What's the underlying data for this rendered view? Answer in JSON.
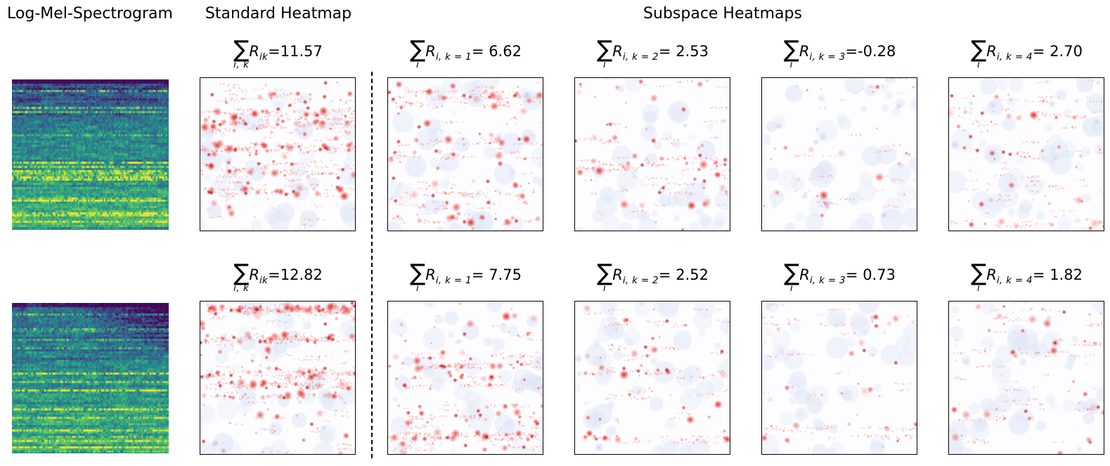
{
  "figure": {
    "column_titles": {
      "spectrogram": "Log-Mel-Spectrogram",
      "standard": "Standard Heatmap",
      "subspace": "Subspace Heatmaps"
    },
    "symbols": {
      "sum": "∑"
    },
    "colors": {
      "background": "#ffffff",
      "text": "#000000",
      "heatmap_positive_red": "#cc0000",
      "heatmap_negative_blue": "#8898dc",
      "heatmap_background": "#fdfdff",
      "spectrogram_low": "#440154",
      "spectrogram_mid": "#21918c",
      "spectrogram_high": "#fde725",
      "divider": "#000000",
      "panel_border": "#000000"
    },
    "rows": [
      {
        "panels": [
          {
            "type": "spectrogram"
          },
          {
            "type": "standard",
            "sum_sub": "i, k",
            "r_var": "R",
            "r_sub": "ik",
            "rhs": "=11.57",
            "value": 11.57
          },
          {
            "type": "subspace",
            "k": 1,
            "sum_sub": "i",
            "r_var": "R",
            "r_sub": "i, k = 1",
            "rhs": "= 6.62",
            "value": 6.62
          },
          {
            "type": "subspace",
            "k": 2,
            "sum_sub": "i",
            "r_var": "R",
            "r_sub": "i, k = 2",
            "rhs": "= 2.53",
            "value": 2.53
          },
          {
            "type": "subspace",
            "k": 3,
            "sum_sub": "i",
            "r_var": "R",
            "r_sub": "i, k = 3",
            "rhs": "=-0.28",
            "value": -0.28
          },
          {
            "type": "subspace",
            "k": 4,
            "sum_sub": "i",
            "r_var": "R",
            "r_sub": "i, k = 4",
            "rhs": "= 2.70",
            "value": 2.7
          }
        ]
      },
      {
        "panels": [
          {
            "type": "spectrogram"
          },
          {
            "type": "standard",
            "sum_sub": "i, k",
            "r_var": "R",
            "r_sub": "ik",
            "rhs": "=12.82",
            "value": 12.82
          },
          {
            "type": "subspace",
            "k": 1,
            "sum_sub": "i",
            "r_var": "R",
            "r_sub": "i, k = 1",
            "rhs": "= 7.75",
            "value": 7.75
          },
          {
            "type": "subspace",
            "k": 2,
            "sum_sub": "i",
            "r_var": "R",
            "r_sub": "i, k = 2",
            "rhs": "= 2.52",
            "value": 2.52
          },
          {
            "type": "subspace",
            "k": 3,
            "sum_sub": "i",
            "r_var": "R",
            "r_sub": "i, k = 3",
            "rhs": "= 0.73",
            "value": 0.73
          },
          {
            "type": "subspace",
            "k": 4,
            "sum_sub": "i",
            "r_var": "R",
            "r_sub": "i, k = 4",
            "rhs": "= 1.82",
            "value": 1.82
          }
        ]
      }
    ]
  }
}
